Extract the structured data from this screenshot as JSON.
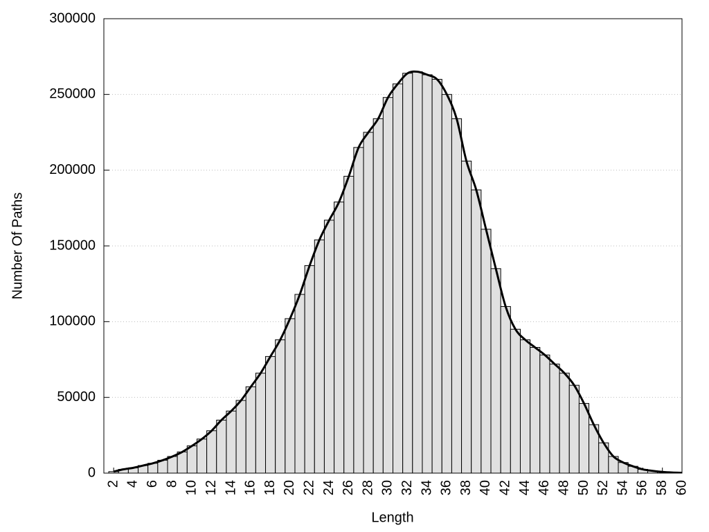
{
  "chart_data": {
    "type": "bar",
    "x_label": "Length",
    "y_label": "Number Of Paths",
    "x": [
      2,
      3,
      4,
      5,
      6,
      7,
      8,
      9,
      10,
      11,
      12,
      13,
      14,
      15,
      16,
      17,
      18,
      19,
      20,
      21,
      22,
      23,
      24,
      25,
      26,
      27,
      28,
      29,
      30,
      31,
      32,
      33,
      34,
      35,
      36,
      37,
      38,
      39,
      40,
      41,
      42,
      43,
      44,
      45,
      46,
      47,
      48,
      49,
      50,
      51,
      52,
      53,
      54,
      55,
      56,
      57,
      58,
      59,
      60
    ],
    "values": [
      1000,
      2500,
      3500,
      5000,
      6500,
      8500,
      11000,
      14000,
      18000,
      22500,
      28000,
      35000,
      41000,
      48000,
      57000,
      66000,
      77000,
      88000,
      102000,
      118000,
      137000,
      154000,
      167000,
      179000,
      196000,
      215000,
      225000,
      234000,
      248000,
      257000,
      264000,
      265000,
      263000,
      260000,
      250000,
      234000,
      206000,
      187000,
      161000,
      135000,
      110000,
      95000,
      88000,
      83000,
      78000,
      72000,
      66000,
      58000,
      46000,
      32000,
      20000,
      11000,
      7000,
      4500,
      2500,
      1500,
      800,
      400,
      200
    ],
    "color": "#e0e0e0",
    "edge_color": "#000000",
    "line_color": "#000000",
    "smooth_line": true,
    "xlim": [
      1,
      60
    ],
    "xticks": [
      2,
      4,
      6,
      8,
      10,
      12,
      14,
      16,
      18,
      20,
      22,
      24,
      26,
      28,
      30,
      32,
      34,
      36,
      38,
      40,
      42,
      44,
      46,
      48,
      50,
      52,
      54,
      56,
      58,
      60
    ],
    "ylim": [
      0,
      300000
    ],
    "yticks": [
      0,
      50000,
      100000,
      150000,
      200000,
      250000,
      300000
    ],
    "grid": true
  }
}
